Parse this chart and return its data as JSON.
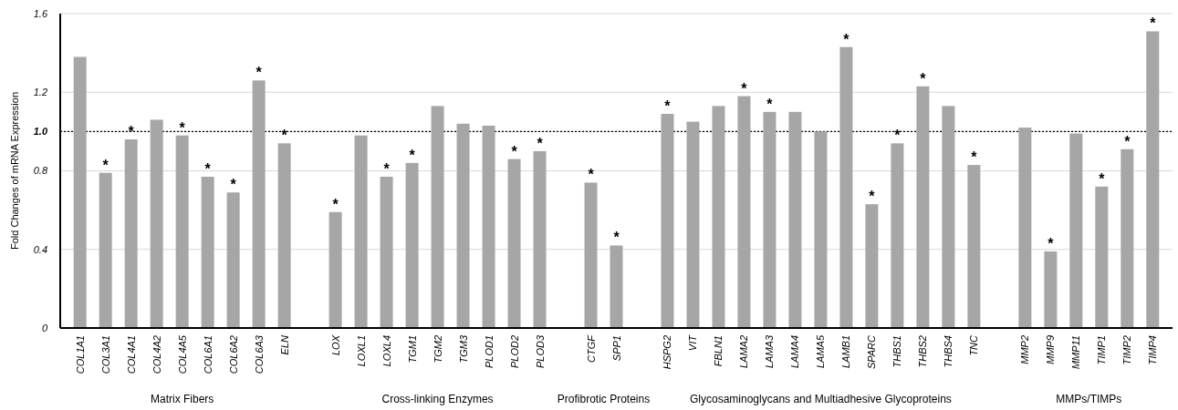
{
  "chart_data": {
    "type": "bar",
    "ylabel": "Fold Changes of mRNA Expression",
    "categories": [
      "COL1A1",
      "COL3A1",
      "COL4A1",
      "COL4A2",
      "COL4A5",
      "COL6A1",
      "COL6A2",
      "COL6A3",
      "ELN",
      null,
      "LOX",
      "LOXL1",
      "LOXL4",
      "TGM1",
      "TGM2",
      "TGM3",
      "PLOD1",
      "PLOD2",
      "PLOD3",
      null,
      "CTGF",
      "SPP1",
      null,
      "HSPG2",
      "VIT",
      "FBLN1",
      "LAMA2",
      "LAMA3",
      "LAMA4",
      "LAMA5",
      "LAMB1",
      "SPARC",
      "THBS1",
      "THBS2",
      "THBS4",
      "TNC",
      null,
      "MMP2",
      "MMP9",
      "MMP11",
      "TIMP1",
      "TIMP2",
      "TIMP4"
    ],
    "values": [
      1.38,
      0.79,
      0.96,
      1.06,
      0.98,
      0.77,
      0.69,
      1.26,
      0.94,
      null,
      0.59,
      0.98,
      0.77,
      0.84,
      1.13,
      1.04,
      1.03,
      0.86,
      0.9,
      null,
      0.74,
      0.42,
      null,
      1.09,
      1.05,
      1.13,
      1.18,
      1.1,
      1.1,
      1.0,
      1.43,
      0.63,
      0.94,
      1.23,
      1.13,
      0.83,
      null,
      1.02,
      0.39,
      0.99,
      0.72,
      0.91,
      1.51
    ],
    "value_labels": [
      null,
      "*",
      "*",
      null,
      "*",
      "*",
      "*",
      "*",
      "*",
      null,
      "*",
      null,
      "*",
      "*",
      null,
      null,
      null,
      "*",
      "*",
      null,
      "*",
      "*",
      null,
      "*",
      null,
      null,
      "*",
      "*",
      null,
      null,
      "*",
      "*",
      "*",
      "*",
      null,
      "*",
      null,
      null,
      "*",
      null,
      "*",
      "*",
      "*"
    ],
    "color": "#a6a6a6",
    "ylim": [
      0,
      1.6
    ],
    "yticks": [
      0,
      0.4,
      0.8,
      {
        "value": 1,
        "label": "1.0"
      },
      1.2,
      1.6
    ],
    "grid": "y",
    "ref_lines": [
      {
        "axis": "y",
        "value": 1,
        "color": "#000000",
        "line_style": "dotted"
      }
    ],
    "annotations": [
      "Matrix Fibers",
      "Cross-linking Enzymes",
      "Profibrotic Proteins",
      "Glycosaminoglycans and Multiadhesive Glycoproteins",
      "MMPs/TIMPs"
    ]
  }
}
